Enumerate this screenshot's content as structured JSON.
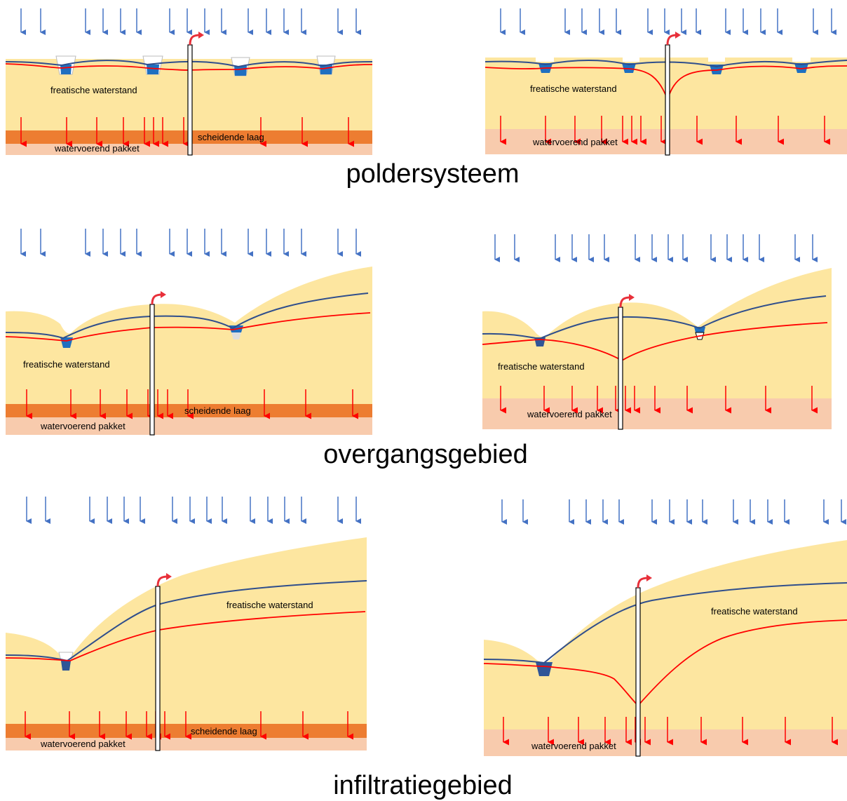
{
  "labels": {
    "water_table": "freatische waterstand",
    "separating_layer": "scheidende laag",
    "aquifer": "watervoerend pakket"
  },
  "captions": {
    "polder": "poldersysteem",
    "transition": "overgangsgebied",
    "infiltration": "infiltratiegebied"
  },
  "colors": {
    "soil": "#FDE6A0",
    "separating_layer": "#ED7D31",
    "aquifer": "#F8CBAD",
    "groundwater_line": "#2F4E8C",
    "pumped_line": "#FF0000",
    "rain_arrow": "#4472C4",
    "seepage_arrow": "#FF0000",
    "ditch_water": "#1F6FC0",
    "well_outlet": "#E8303A"
  },
  "icons": [
    "rain-arrow-icon",
    "seepage-arrow-icon",
    "well-pipe-icon",
    "ditch-icon"
  ]
}
